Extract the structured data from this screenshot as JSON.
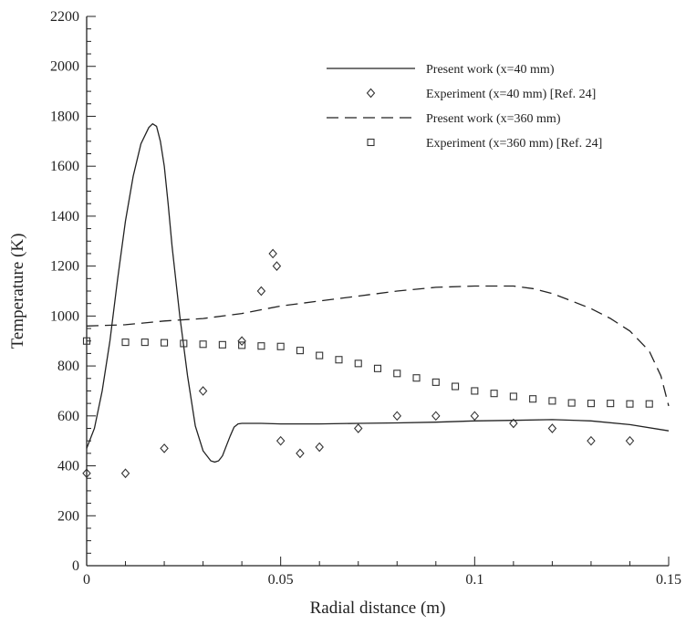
{
  "chart_data": {
    "type": "line",
    "xlabel": "Radial distance (m)",
    "ylabel": "Temperature (K)",
    "xlim": [
      0,
      0.15
    ],
    "ylim": [
      0,
      2200
    ],
    "x_ticks": [
      0,
      0.05,
      0.1,
      0.15
    ],
    "x_tick_labels": [
      "0",
      "0.05",
      "0.1",
      "0.15"
    ],
    "y_ticks": [
      0,
      200,
      400,
      600,
      800,
      1000,
      1200,
      1400,
      1600,
      1800,
      2000,
      2200
    ],
    "y_tick_labels": [
      "0",
      "200",
      "400",
      "600",
      "800",
      "1000",
      "1200",
      "1400",
      "1600",
      "1800",
      "2000",
      "2200"
    ],
    "grid": false,
    "legend_position": "top-right",
    "series": [
      {
        "name": "Present work (x=40 mm)",
        "style": "solid-line",
        "x": [
          0,
          0.002,
          0.004,
          0.006,
          0.008,
          0.01,
          0.012,
          0.014,
          0.016,
          0.017,
          0.018,
          0.019,
          0.02,
          0.021,
          0.022,
          0.024,
          0.026,
          0.028,
          0.03,
          0.032,
          0.033,
          0.034,
          0.035,
          0.036,
          0.037,
          0.038,
          0.039,
          0.04,
          0.045,
          0.05,
          0.06,
          0.07,
          0.08,
          0.09,
          0.1,
          0.11,
          0.12,
          0.13,
          0.14,
          0.15
        ],
        "y": [
          470,
          550,
          700,
          900,
          1150,
          1380,
          1560,
          1690,
          1755,
          1770,
          1760,
          1700,
          1600,
          1450,
          1280,
          1000,
          760,
          560,
          460,
          420,
          415,
          420,
          440,
          480,
          520,
          555,
          568,
          570,
          570,
          568,
          568,
          570,
          572,
          575,
          580,
          582,
          585,
          580,
          565,
          540
        ]
      },
      {
        "name": "Experiment (x=40 mm) [Ref. 24]",
        "style": "diamond",
        "x": [
          0,
          0.01,
          0.02,
          0.03,
          0.04,
          0.045,
          0.048,
          0.049,
          0.05,
          0.055,
          0.06,
          0.07,
          0.08,
          0.09,
          0.1,
          0.11,
          0.12,
          0.13,
          0.14
        ],
        "y": [
          370,
          370,
          470,
          700,
          900,
          1100,
          1250,
          1200,
          500,
          450,
          475,
          550,
          600,
          600,
          600,
          570,
          550,
          500,
          500
        ]
      },
      {
        "name": "Present work (x=360 mm)",
        "style": "dashed-line",
        "x": [
          0,
          0.01,
          0.02,
          0.03,
          0.04,
          0.05,
          0.06,
          0.07,
          0.08,
          0.09,
          0.1,
          0.11,
          0.115,
          0.12,
          0.125,
          0.13,
          0.135,
          0.14,
          0.145,
          0.148,
          0.15
        ],
        "y": [
          960,
          965,
          980,
          990,
          1010,
          1040,
          1060,
          1080,
          1100,
          1115,
          1120,
          1120,
          1110,
          1090,
          1060,
          1030,
          990,
          940,
          860,
          760,
          640
        ]
      },
      {
        "name": "Experiment (x=360 mm) [Ref. 24]",
        "style": "square",
        "x": [
          0,
          0.01,
          0.015,
          0.02,
          0.025,
          0.03,
          0.035,
          0.04,
          0.045,
          0.05,
          0.055,
          0.06,
          0.065,
          0.07,
          0.075,
          0.08,
          0.085,
          0.09,
          0.095,
          0.1,
          0.105,
          0.11,
          0.115,
          0.12,
          0.125,
          0.13,
          0.135,
          0.14,
          0.145
        ],
        "y": [
          900,
          895,
          895,
          893,
          890,
          887,
          885,
          883,
          880,
          878,
          862,
          842,
          825,
          810,
          790,
          770,
          752,
          735,
          718,
          700,
          690,
          678,
          668,
          660,
          652,
          650,
          650,
          648,
          648
        ]
      }
    ]
  }
}
